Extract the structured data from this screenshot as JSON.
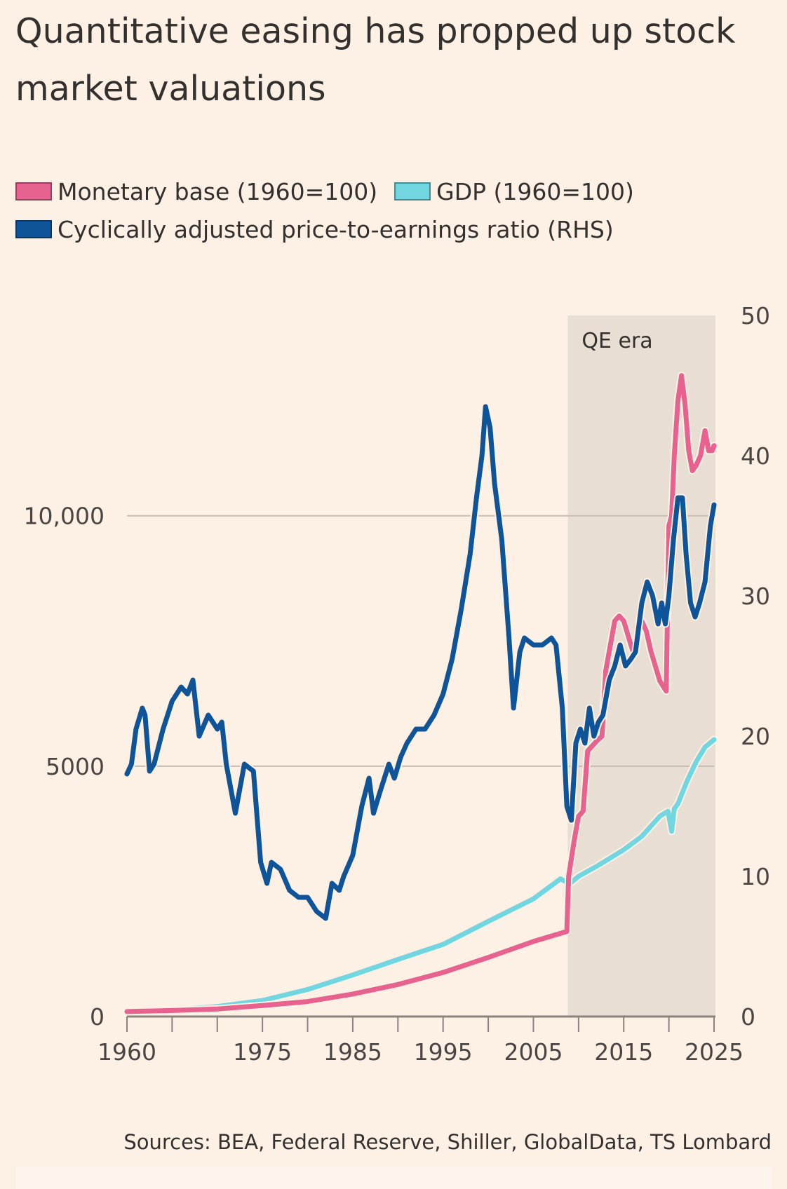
{
  "title": "Quantitative easing has propped up stock market valuations",
  "legend": [
    {
      "label": "Monetary base (1960=100)",
      "color": "#e8628f"
    },
    {
      "label": "GDP (1960=100)",
      "color": "#71d6e0"
    },
    {
      "label": "Cyclically adjusted price-to-earnings ratio (RHS)",
      "color": "#0f5499"
    }
  ],
  "source": "Sources: BEA, Federal Reserve, Shiller, GlobalData, TS Lombard",
  "chart_data": {
    "type": "line",
    "title": "Quantitative easing has propped up stock market valuations",
    "xlim": [
      1960,
      2025
    ],
    "x_ticks": [
      1960,
      1965,
      1970,
      1975,
      1980,
      1985,
      1990,
      1995,
      2000,
      2005,
      2010,
      2015,
      2020,
      2025
    ],
    "x_tick_labels": [
      "1960",
      "1975",
      "1985",
      "1995",
      "2005",
      "2015",
      "2025"
    ],
    "x_tick_label_years": [
      1960,
      1975,
      1985,
      1995,
      2005,
      2015,
      2025
    ],
    "y_left": {
      "lim": [
        0,
        14000
      ],
      "ticks": [
        0,
        5000,
        10000
      ],
      "tick_labels": [
        "0",
        "5000",
        "10,000"
      ],
      "grid": true
    },
    "y_right": {
      "lim": [
        0,
        50
      ],
      "ticks": [
        0,
        10,
        20,
        30,
        40,
        50
      ],
      "tick_labels": [
        "0",
        "10",
        "20",
        "30",
        "40",
        "50"
      ]
    },
    "annotation": {
      "label": "QE era",
      "x_start": 2008.8,
      "x_end": 2025,
      "shade": "#e9ded3"
    },
    "series": [
      {
        "name": "Monetary base (1960=100)",
        "axis": "left",
        "color": "#e8628f",
        "x": [
          1960,
          1965,
          1970,
          1975,
          1980,
          1985,
          1990,
          1995,
          2000,
          2005,
          2008.7,
          2008.9,
          2009.5,
          2010,
          2010.5,
          2011,
          2012,
          2012.6,
          2013,
          2014,
          2014.5,
          2015,
          2016,
          2016.5,
          2017,
          2017.5,
          2018,
          2019,
          2019.7,
          2020,
          2020.3,
          2020.6,
          2021,
          2021.4,
          2021.8,
          2022.2,
          2022.6,
          2023,
          2023.5,
          2024,
          2024.4,
          2024.8,
          2025
        ],
        "y": [
          100,
          120,
          150,
          220,
          300,
          450,
          640,
          880,
          1180,
          1500,
          1700,
          2800,
          3500,
          4000,
          4100,
          5300,
          5500,
          5600,
          6900,
          7900,
          8000,
          7900,
          7300,
          7500,
          7900,
          7700,
          7300,
          6700,
          6500,
          9800,
          10000,
          11200,
          12300,
          12800,
          12200,
          11300,
          10900,
          11000,
          11200,
          11700,
          11300,
          11300,
          11400
        ]
      },
      {
        "name": "GDP (1960=100)",
        "axis": "left",
        "color": "#71d6e0",
        "x": [
          1960,
          1965,
          1970,
          1975,
          1980,
          1985,
          1990,
          1995,
          2000,
          2005,
          2008,
          2009,
          2010,
          2012,
          2015,
          2017,
          2019,
          2019.9,
          2020.3,
          2020.6,
          2021,
          2022,
          2023,
          2024,
          2025
        ],
        "y": [
          100,
          130,
          200,
          320,
          540,
          830,
          1140,
          1440,
          1900,
          2350,
          2750,
          2650,
          2800,
          3000,
          3330,
          3600,
          4000,
          4100,
          3700,
          4150,
          4250,
          4700,
          5080,
          5380,
          5530
        ]
      },
      {
        "name": "Cyclically adjusted price-to-earnings ratio (RHS)",
        "axis": "right",
        "color": "#0f5499",
        "x": [
          1960,
          1960.5,
          1961,
          1961.7,
          1962,
          1962.5,
          1963,
          1964,
          1965,
          1966,
          1966.7,
          1967.3,
          1968,
          1969,
          1970,
          1970.5,
          1971,
          1972,
          1973,
          1974,
          1974.8,
          1975.5,
          1976,
          1977,
          1978,
          1979,
          1980,
          1981,
          1982,
          1982.7,
          1983.5,
          1984,
          1985,
          1986,
          1986.8,
          1987.3,
          1988,
          1989,
          1989.6,
          1990.3,
          1991,
          1992,
          1993,
          1994,
          1995,
          1996,
          1997,
          1998,
          1998.7,
          1999.3,
          1999.7,
          2000.2,
          2000.7,
          2001.5,
          2002.3,
          2002.8,
          2003.5,
          2004,
          2005,
          2006,
          2007,
          2007.5,
          2008.2,
          2008.7,
          2009.2,
          2009.7,
          2010.2,
          2010.7,
          2011.2,
          2011.7,
          2012.2,
          2012.7,
          2013.4,
          2014,
          2014.6,
          2015.2,
          2015.8,
          2016.3,
          2017,
          2017.6,
          2018.2,
          2018.8,
          2019.2,
          2019.6,
          2020,
          2020.5,
          2021,
          2021.5,
          2021.9,
          2022.4,
          2022.9,
          2023.4,
          2024,
          2024.6,
          2025
        ],
        "y": [
          17.3,
          18,
          20.5,
          22,
          21.5,
          17.5,
          18,
          20.5,
          22.5,
          23.5,
          23,
          24,
          20,
          21.5,
          20.5,
          21,
          18,
          14.5,
          18,
          17.5,
          11,
          9.5,
          11,
          10.5,
          9,
          8.5,
          8.5,
          7.5,
          7,
          9.5,
          9,
          10,
          11.5,
          15,
          17,
          14.5,
          16,
          18,
          17,
          18.5,
          19.5,
          20.5,
          20.5,
          21.5,
          23,
          25.5,
          29,
          33,
          37,
          40,
          43.5,
          42,
          38,
          34,
          27,
          22,
          26,
          27,
          26.5,
          26.5,
          27,
          26.5,
          22,
          15,
          14,
          19.5,
          20.5,
          19.5,
          22,
          20,
          21,
          21.5,
          24,
          25,
          26.5,
          25,
          25.5,
          26,
          29.5,
          31,
          30,
          28,
          29.5,
          28,
          30,
          34,
          37,
          37,
          33,
          29.5,
          28.5,
          29.5,
          31,
          35,
          36.5
        ]
      }
    ]
  }
}
